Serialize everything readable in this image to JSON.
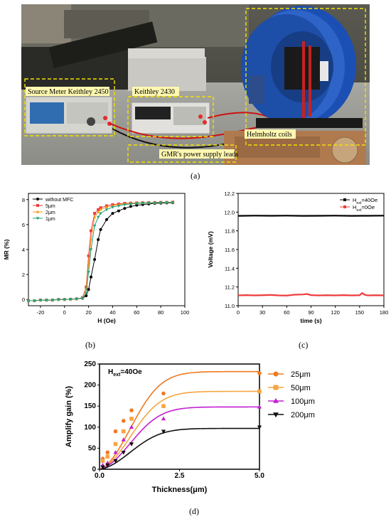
{
  "figure": {
    "photo": {
      "labels": {
        "source_meter": "Source Meter Keithley 2450",
        "keithley": "Keithley 2430",
        "helmholtz": "Helmholtz coils",
        "leads": "GMR's power supply leads"
      },
      "caption": "(a)"
    },
    "panels": {
      "b": {
        "caption": "(b)"
      },
      "c": {
        "caption": "(c)"
      },
      "d": {
        "caption": "(d)"
      }
    }
  },
  "chart_data": [
    {
      "id": "b",
      "type": "line",
      "xlabel": "H (Oe)",
      "ylabel": "MR (%)",
      "xlim": [
        -30,
        100
      ],
      "ylim": [
        -0.5,
        8.5
      ],
      "xticks": [
        "-20",
        "0",
        "20",
        "40",
        "60",
        "80",
        "100"
      ],
      "yticks": [
        "0",
        "2",
        "4",
        "6",
        "8"
      ],
      "legend_position": "top-left",
      "series": [
        {
          "name": "without MFC",
          "color": "#000000",
          "marker": "circle",
          "x": [
            -30,
            -25,
            -20,
            -15,
            -10,
            -5,
            0,
            5,
            10,
            15,
            18,
            20,
            22,
            25,
            28,
            30,
            35,
            40,
            45,
            50,
            55,
            60,
            65,
            70,
            75,
            80,
            85,
            90
          ],
          "y": [
            -0.1,
            -0.1,
            -0.05,
            -0.05,
            -0.05,
            0,
            0,
            0.02,
            0.05,
            0.1,
            0.3,
            0.8,
            1.8,
            3.2,
            4.8,
            5.6,
            6.4,
            6.9,
            7.1,
            7.3,
            7.45,
            7.55,
            7.6,
            7.65,
            7.7,
            7.72,
            7.73,
            7.75
          ]
        },
        {
          "name": "5μm",
          "color": "#ef3b3b",
          "marker": "square",
          "x": [
            -30,
            -25,
            -20,
            -15,
            -10,
            -5,
            0,
            5,
            10,
            15,
            18,
            20,
            22,
            25,
            28,
            30,
            35,
            40,
            45,
            50,
            55,
            60,
            65,
            70,
            75,
            80,
            85,
            90
          ],
          "y": [
            -0.1,
            -0.1,
            -0.05,
            -0.05,
            -0.05,
            0,
            0,
            0.02,
            0.05,
            0.15,
            1.0,
            3.5,
            5.5,
            6.9,
            7.2,
            7.35,
            7.5,
            7.6,
            7.65,
            7.7,
            7.72,
            7.74,
            7.75,
            7.76,
            7.77,
            7.78,
            7.78,
            7.8
          ]
        },
        {
          "name": "2μm",
          "color": "#f39a1a",
          "marker": "triangle-up",
          "x": [
            -30,
            -25,
            -20,
            -15,
            -10,
            -5,
            0,
            5,
            10,
            15,
            18,
            20,
            22,
            25,
            28,
            30,
            35,
            40,
            45,
            50,
            55,
            60,
            65,
            70,
            75,
            80,
            85,
            90
          ],
          "y": [
            -0.1,
            -0.1,
            -0.05,
            -0.05,
            -0.05,
            0,
            0,
            0.02,
            0.05,
            0.12,
            0.8,
            2.9,
            4.8,
            6.6,
            7.0,
            7.2,
            7.4,
            7.5,
            7.6,
            7.65,
            7.7,
            7.72,
            7.74,
            7.75,
            7.76,
            7.77,
            7.78,
            7.8
          ]
        },
        {
          "name": "1μm",
          "color": "#1fa27a",
          "marker": "triangle-down",
          "x": [
            -30,
            -25,
            -20,
            -15,
            -10,
            -5,
            0,
            5,
            10,
            15,
            18,
            20,
            22,
            25,
            28,
            30,
            35,
            40,
            45,
            50,
            55,
            60,
            65,
            70,
            75,
            80,
            85,
            90
          ],
          "y": [
            -0.1,
            -0.1,
            -0.05,
            -0.05,
            -0.05,
            0,
            0,
            0.02,
            0.05,
            0.12,
            0.5,
            2.2,
            4.0,
            5.9,
            6.6,
            6.9,
            7.2,
            7.4,
            7.5,
            7.6,
            7.65,
            7.7,
            7.72,
            7.74,
            7.75,
            7.76,
            7.77,
            7.78
          ]
        }
      ]
    },
    {
      "id": "c",
      "type": "line",
      "xlabel": "time (s)",
      "ylabel": "Voltage (mV)",
      "xlim": [
        0,
        180
      ],
      "ylim": [
        11.0,
        12.2
      ],
      "xticks": [
        "0",
        "30",
        "60",
        "90",
        "120",
        "150",
        "180"
      ],
      "yticks": [
        "11.0",
        "11.2",
        "11.4",
        "11.6",
        "11.8",
        "12.0",
        "12.2"
      ],
      "legend_position": "top-right",
      "series": [
        {
          "name": "Hext=40Oe",
          "legend_main": "H",
          "legend_sub": "ext",
          "legend_tail": "=40Oe",
          "color": "#000000",
          "x": [
            0,
            20,
            40,
            60,
            80,
            100,
            120,
            140,
            160,
            180
          ],
          "y": [
            11.96,
            11.962,
            11.961,
            11.962,
            11.96,
            11.961,
            11.962,
            11.96,
            11.961,
            11.962
          ]
        },
        {
          "name": "Hext=0Oe",
          "legend_main": "H",
          "legend_sub": "ext",
          "legend_tail": "=0Oe",
          "color": "#ef3b3b",
          "x": [
            0,
            10,
            20,
            30,
            40,
            50,
            60,
            70,
            80,
            85,
            90,
            100,
            110,
            120,
            130,
            140,
            150,
            153,
            156,
            160,
            170,
            180
          ],
          "y": [
            11.11,
            11.113,
            11.11,
            11.112,
            11.115,
            11.11,
            11.108,
            11.118,
            11.12,
            11.125,
            11.113,
            11.11,
            11.112,
            11.11,
            11.113,
            11.11,
            11.112,
            11.135,
            11.118,
            11.11,
            11.112,
            11.11
          ]
        }
      ]
    },
    {
      "id": "d",
      "type": "scatter",
      "xlabel": "Thickness(μm)",
      "ylabel": "Amplify gain (%)",
      "xlim": [
        0,
        5.0
      ],
      "ylim": [
        0,
        250
      ],
      "xticks": [
        "0.0",
        "2.5",
        "5.0"
      ],
      "yticks": [
        "0",
        "50",
        "100",
        "150",
        "200",
        "250"
      ],
      "annotation": {
        "main": "H",
        "sub": "ext",
        "tail": "=40Oe"
      },
      "legend_position": "right",
      "series": [
        {
          "name": "25μm",
          "color": "#ee7a22",
          "marker": "circle",
          "x": [
            0.1,
            0.25,
            0.5,
            0.75,
            1.0,
            2.0,
            5.0
          ],
          "y": [
            25,
            40,
            90,
            115,
            140,
            180,
            228
          ],
          "fit_max": 232
        },
        {
          "name": "50μm",
          "color": "#f7a541",
          "marker": "square",
          "x": [
            0.1,
            0.25,
            0.5,
            0.75,
            1.0,
            2.0,
            5.0
          ],
          "y": [
            20,
            30,
            60,
            90,
            120,
            150,
            185
          ],
          "fit_max": 185
        },
        {
          "name": "100μm",
          "color": "#c21fd1",
          "marker": "triangle-up",
          "x": [
            0.1,
            0.25,
            0.5,
            0.75,
            1.0,
            2.0,
            5.0
          ],
          "y": [
            10,
            15,
            40,
            70,
            100,
            120,
            148
          ],
          "fit_max": 148
        },
        {
          "name": "200μm",
          "color": "#111111",
          "marker": "triangle-down",
          "x": [
            0.1,
            0.25,
            0.5,
            0.75,
            1.0,
            2.0,
            5.0
          ],
          "y": [
            5,
            10,
            20,
            40,
            60,
            90,
            100
          ],
          "fit_max": 97
        }
      ]
    }
  ]
}
